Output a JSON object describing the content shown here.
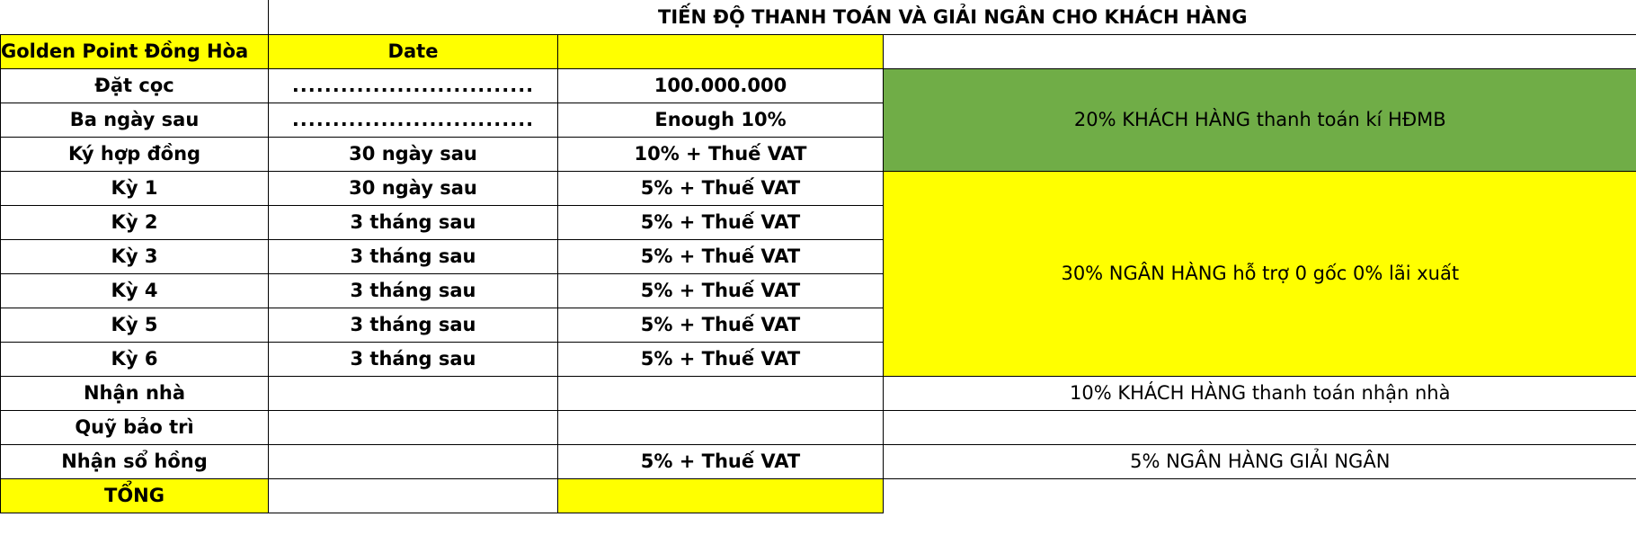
{
  "sheet": {
    "title": "TIẾN ĐỘ THANH TOÁN VÀ GIẢI NGÂN CHO KHÁCH HÀNG",
    "header": {
      "project": "Golden Point Đồng Hòa",
      "date": "Date"
    },
    "rows": [
      {
        "label": "Đặt cọc",
        "date": "..............................",
        "amount": "100.000.000"
      },
      {
        "label": "Ba ngày sau",
        "date": "..............................",
        "amount": "Enough 10%"
      },
      {
        "label": "Ký hợp đồng",
        "date": "30 ngày sau",
        "amount": "10% + Thuế VAT"
      },
      {
        "label": "Kỳ 1",
        "date": "30 ngày sau",
        "amount": "5% + Thuế VAT"
      },
      {
        "label": "Kỳ 2",
        "date": "3 tháng sau",
        "amount": "5% + Thuế VAT"
      },
      {
        "label": "Kỳ 3",
        "date": "3 tháng sau",
        "amount": "5% + Thuế VAT"
      },
      {
        "label": "Kỳ 4",
        "date": "3 tháng sau",
        "amount": "5% + Thuế VAT"
      },
      {
        "label": "Kỳ 5",
        "date": "3 tháng sau",
        "amount": "5% + Thuế VAT"
      },
      {
        "label": "Kỳ 6",
        "date": "3 tháng sau",
        "amount": "5% + Thuế VAT"
      },
      {
        "label": "Nhận nhà",
        "date": "",
        "amount": ""
      },
      {
        "label": "Quỹ bảo trì",
        "date": "",
        "amount": ""
      },
      {
        "label": "Nhận sổ hồng",
        "date": "",
        "amount": "5% + Thuế VAT"
      }
    ],
    "total_label": "TỔNG",
    "notes": {
      "customer_contract": "20% KHÁCH HÀNG thanh toán kí HĐMB",
      "bank_support": "30% NGÂN HÀNG hỗ trợ 0 gốc 0% lãi xuất",
      "customer_handover": "10% KHÁCH HÀNG thanh toán nhận nhà",
      "bank_disburse": "5% NGÂN HÀNG GIẢI NGÂN"
    },
    "colors": {
      "yellow": "#ffff00",
      "green": "#70ad47",
      "red_text": "#ff0000"
    }
  }
}
